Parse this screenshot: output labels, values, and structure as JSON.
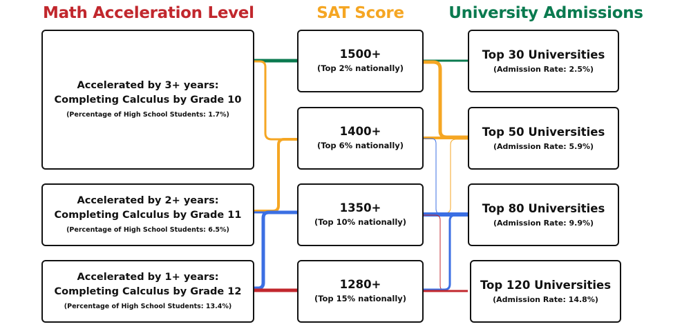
{
  "headers": {
    "math": "Math Acceleration Level",
    "sat": "SAT Score",
    "univ": "University Admissions"
  },
  "colors": {
    "math_header": "#c1272d",
    "sat_header": "#f5a623",
    "univ_header": "#0a7a4f",
    "green": "#0a7a4f",
    "orange": "#f5a623",
    "blue": "#3b6fe3",
    "red": "#c1272d"
  },
  "acceleration_levels": [
    {
      "title": "Accelerated by 3+ years:",
      "subtitle": "Completing Calculus by Grade 10",
      "note": "(Percentage of High School Students: 1.7%)"
    },
    {
      "title": "Accelerated by 2+ years:",
      "subtitle": "Completing Calculus by Grade 11",
      "note": "(Percentage of High School Students: 6.5%)"
    },
    {
      "title": "Accelerated by 1+ years:",
      "subtitle": "Completing Calculus by Grade 12",
      "note": "(Percentage of High School Students: 13.4%)"
    }
  ],
  "sat_scores": [
    {
      "score": "1500+",
      "rank": "(Top 2% nationally)"
    },
    {
      "score": "1400+",
      "rank": "(Top 6% nationally)"
    },
    {
      "score": "1350+",
      "rank": "(Top 10% nationally)"
    },
    {
      "score": "1280+",
      "rank": "(Top 15% nationally)"
    }
  ],
  "universities": [
    {
      "name": "Top 30 Universities",
      "rate": "(Admission Rate: 2.5%)"
    },
    {
      "name": "Top 50 Universities",
      "rate": "(Admission Rate: 5.9%)"
    },
    {
      "name": "Top 80 Universities",
      "rate": "(Admission Rate: 9.9%)"
    },
    {
      "name": "Top 120 Universities",
      "rate": "(Admission Rate: 14.8%)"
    }
  ]
}
